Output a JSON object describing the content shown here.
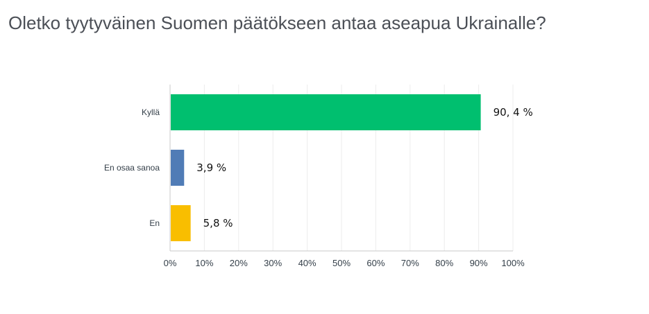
{
  "chart_data": {
    "type": "bar",
    "orientation": "horizontal",
    "title": "Oletko tyytyväinen Suomen päätökseen antaa aseapua Ukrainalle?",
    "categories": [
      "Kyllä",
      "En osaa sanoa",
      "En"
    ],
    "values": [
      90.4,
      3.9,
      5.8
    ],
    "value_labels": [
      "90, 4 %",
      "3,9 %",
      "5,8 %"
    ],
    "colors": [
      "#00bf6f",
      "#507cb6",
      "#f9be00"
    ],
    "xlim": [
      0,
      100
    ],
    "x_ticks": [
      "0%",
      "10%",
      "20%",
      "30%",
      "40%",
      "50%",
      "60%",
      "70%",
      "80%",
      "90%",
      "100%"
    ],
    "grid": true,
    "legend": "none"
  }
}
